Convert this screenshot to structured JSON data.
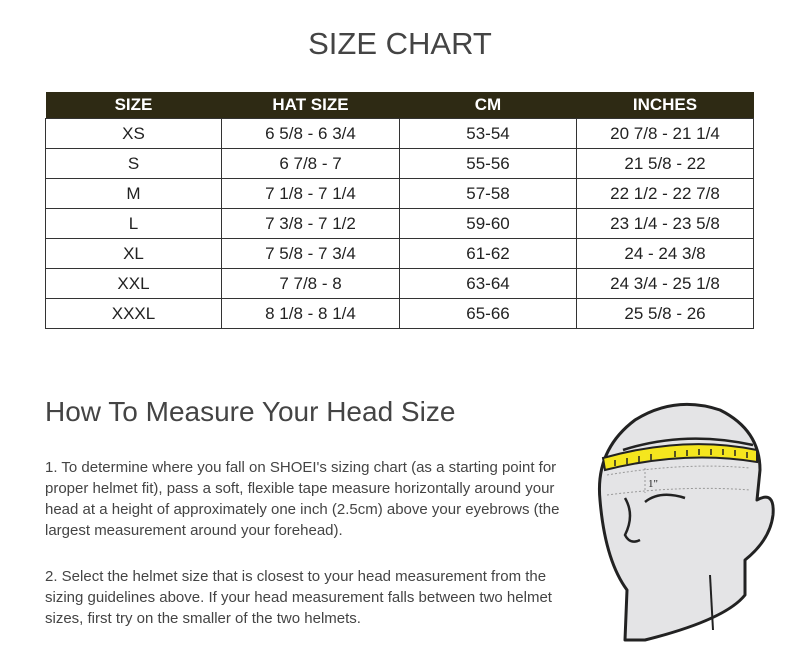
{
  "title": "SIZE CHART",
  "table": {
    "headers": [
      "SIZE",
      "HAT SIZE",
      "CM",
      "INCHES"
    ],
    "rows": [
      [
        "XS",
        "6 5/8 - 6 3/4",
        "53-54",
        "20 7/8 - 21 1/4"
      ],
      [
        "S",
        "6 7/8 - 7",
        "55-56",
        "21 5/8 - 22"
      ],
      [
        "M",
        "7 1/8 - 7 1/4",
        "57-58",
        "22 1/2 - 22 7/8"
      ],
      [
        "L",
        "7 3/8 - 7 1/2",
        "59-60",
        "23 1/4 - 23 5/8"
      ],
      [
        "XL",
        "7 5/8 - 7 3/4",
        "61-62",
        "24 - 24 3/8"
      ],
      [
        "XXL",
        "7 7/8 - 8",
        "63-64",
        "24 3/4 - 25 1/8"
      ],
      [
        "XXXL",
        "8 1/8 - 8 1/4",
        "65-66",
        "25 5/8 - 26"
      ]
    ]
  },
  "measure": {
    "heading": "How To Measure Your Head Size",
    "step1": "1. To determine where you fall on SHOEI's sizing chart (as a starting point for proper helmet fit), pass a soft, flexible tape measure horizontally around your head at a height of approximately one inch (2.5cm) above your eyebrows (the largest measurement around your forehead).",
    "step2": "2. Select the helmet size that is closest to your head measurement from the sizing guidelines above. If your head measurement falls between two helmet sizes, first try on the smaller of the two helmets.",
    "illustration_label": "1\""
  },
  "colors": {
    "header_bg": "#2e2a14",
    "tape": "#f5e61e"
  }
}
